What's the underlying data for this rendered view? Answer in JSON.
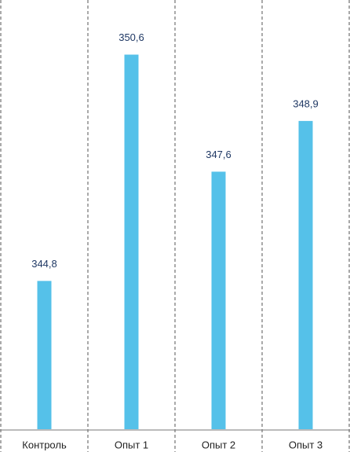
{
  "chart_data": {
    "type": "bar",
    "categories": [
      "Контроль",
      "Опыт 1",
      "Опыт 2",
      "Опыт 3"
    ],
    "values": [
      344.8,
      350.6,
      347.6,
      348.9
    ],
    "value_labels": [
      "344,8",
      "350,6",
      "347,6",
      "348,9"
    ],
    "color": "#55c1e9",
    "ylim": [
      341,
      352
    ]
  }
}
